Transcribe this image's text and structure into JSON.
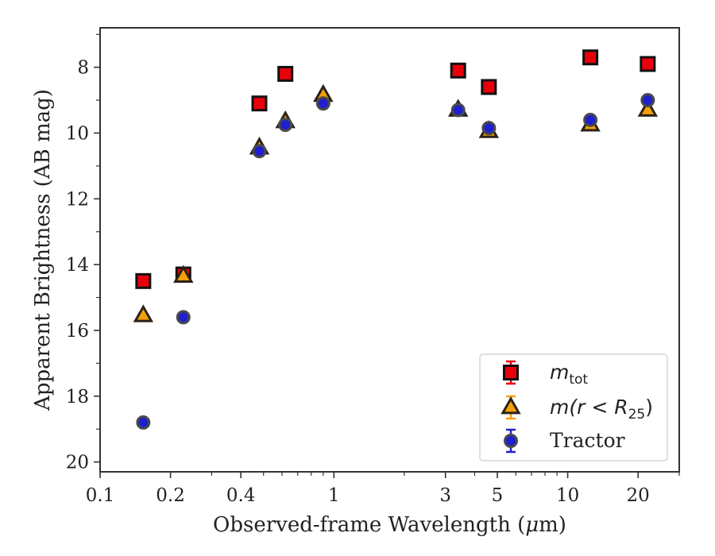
{
  "chart_data": {
    "type": "scatter",
    "xlabel_pre": "Observed-frame Wavelength (",
    "xlabel_mu": "μ",
    "xlabel_post": "m)",
    "ylabel": "Apparent Brightness (AB mag)",
    "xscale": "log",
    "xlim": [
      0.1,
      30
    ],
    "ylim": [
      20.3,
      6.8
    ],
    "y_inverted": true,
    "grid": false,
    "legend_position": "lower-right",
    "x_ticks": [
      {
        "value": 0.1,
        "label": "0.1"
      },
      {
        "value": 0.2,
        "label": "0.2"
      },
      {
        "value": 0.4,
        "label": "0.4"
      },
      {
        "value": 1,
        "label": "1"
      },
      {
        "value": 3,
        "label": "3"
      },
      {
        "value": 5,
        "label": "5"
      },
      {
        "value": 10,
        "label": "10"
      },
      {
        "value": 20,
        "label": "20"
      }
    ],
    "x_minor_ticks": [
      0.3,
      0.5,
      0.6,
      0.7,
      0.8,
      0.9,
      2,
      4,
      6,
      7,
      8,
      9,
      30
    ],
    "y_ticks": [
      {
        "value": 8,
        "label": "8"
      },
      {
        "value": 10,
        "label": "10"
      },
      {
        "value": 12,
        "label": "12"
      },
      {
        "value": 14,
        "label": "14"
      },
      {
        "value": 16,
        "label": "16"
      },
      {
        "value": 18,
        "label": "18"
      },
      {
        "value": 20,
        "label": "20"
      }
    ],
    "y_minor_ticks": [
      7,
      9,
      11,
      13,
      15,
      17,
      19
    ],
    "series": [
      {
        "key": "mtot",
        "marker": "square",
        "color": "#e8000b",
        "legend_math": "m",
        "legend_sub": "tot",
        "points": [
          {
            "x": 0.153,
            "y": 14.5
          },
          {
            "x": 0.227,
            "y": 14.3
          },
          {
            "x": 0.48,
            "y": 9.1
          },
          {
            "x": 0.62,
            "y": 8.2
          },
          {
            "x": 3.4,
            "y": 8.1
          },
          {
            "x": 4.6,
            "y": 8.6
          },
          {
            "x": 12.5,
            "y": 7.7
          },
          {
            "x": 22.0,
            "y": 7.9
          }
        ]
      },
      {
        "key": "mr25",
        "marker": "triangle",
        "color": "#f5a00a",
        "legend_math": "m(r < R",
        "legend_sub": "25",
        "legend_math_post": ")",
        "points": [
          {
            "x": 0.153,
            "y": 15.55
          },
          {
            "x": 0.227,
            "y": 14.35
          },
          {
            "x": 0.48,
            "y": 10.45
          },
          {
            "x": 0.62,
            "y": 9.65
          },
          {
            "x": 0.9,
            "y": 8.85
          },
          {
            "x": 3.4,
            "y": 9.3
          },
          {
            "x": 4.6,
            "y": 9.95
          },
          {
            "x": 12.5,
            "y": 9.75
          },
          {
            "x": 22.0,
            "y": 9.3
          }
        ]
      },
      {
        "key": "tractor",
        "marker": "circle",
        "color": "#1f1fd0",
        "legend_text": "Tractor",
        "points": [
          {
            "x": 0.153,
            "y": 18.8
          },
          {
            "x": 0.227,
            "y": 15.6
          },
          {
            "x": 0.48,
            "y": 10.55
          },
          {
            "x": 0.62,
            "y": 9.75
          },
          {
            "x": 0.9,
            "y": 9.1
          },
          {
            "x": 3.4,
            "y": 9.3
          },
          {
            "x": 4.6,
            "y": 9.85
          },
          {
            "x": 12.5,
            "y": 9.6
          },
          {
            "x": 22.0,
            "y": 9.0
          }
        ]
      }
    ]
  }
}
